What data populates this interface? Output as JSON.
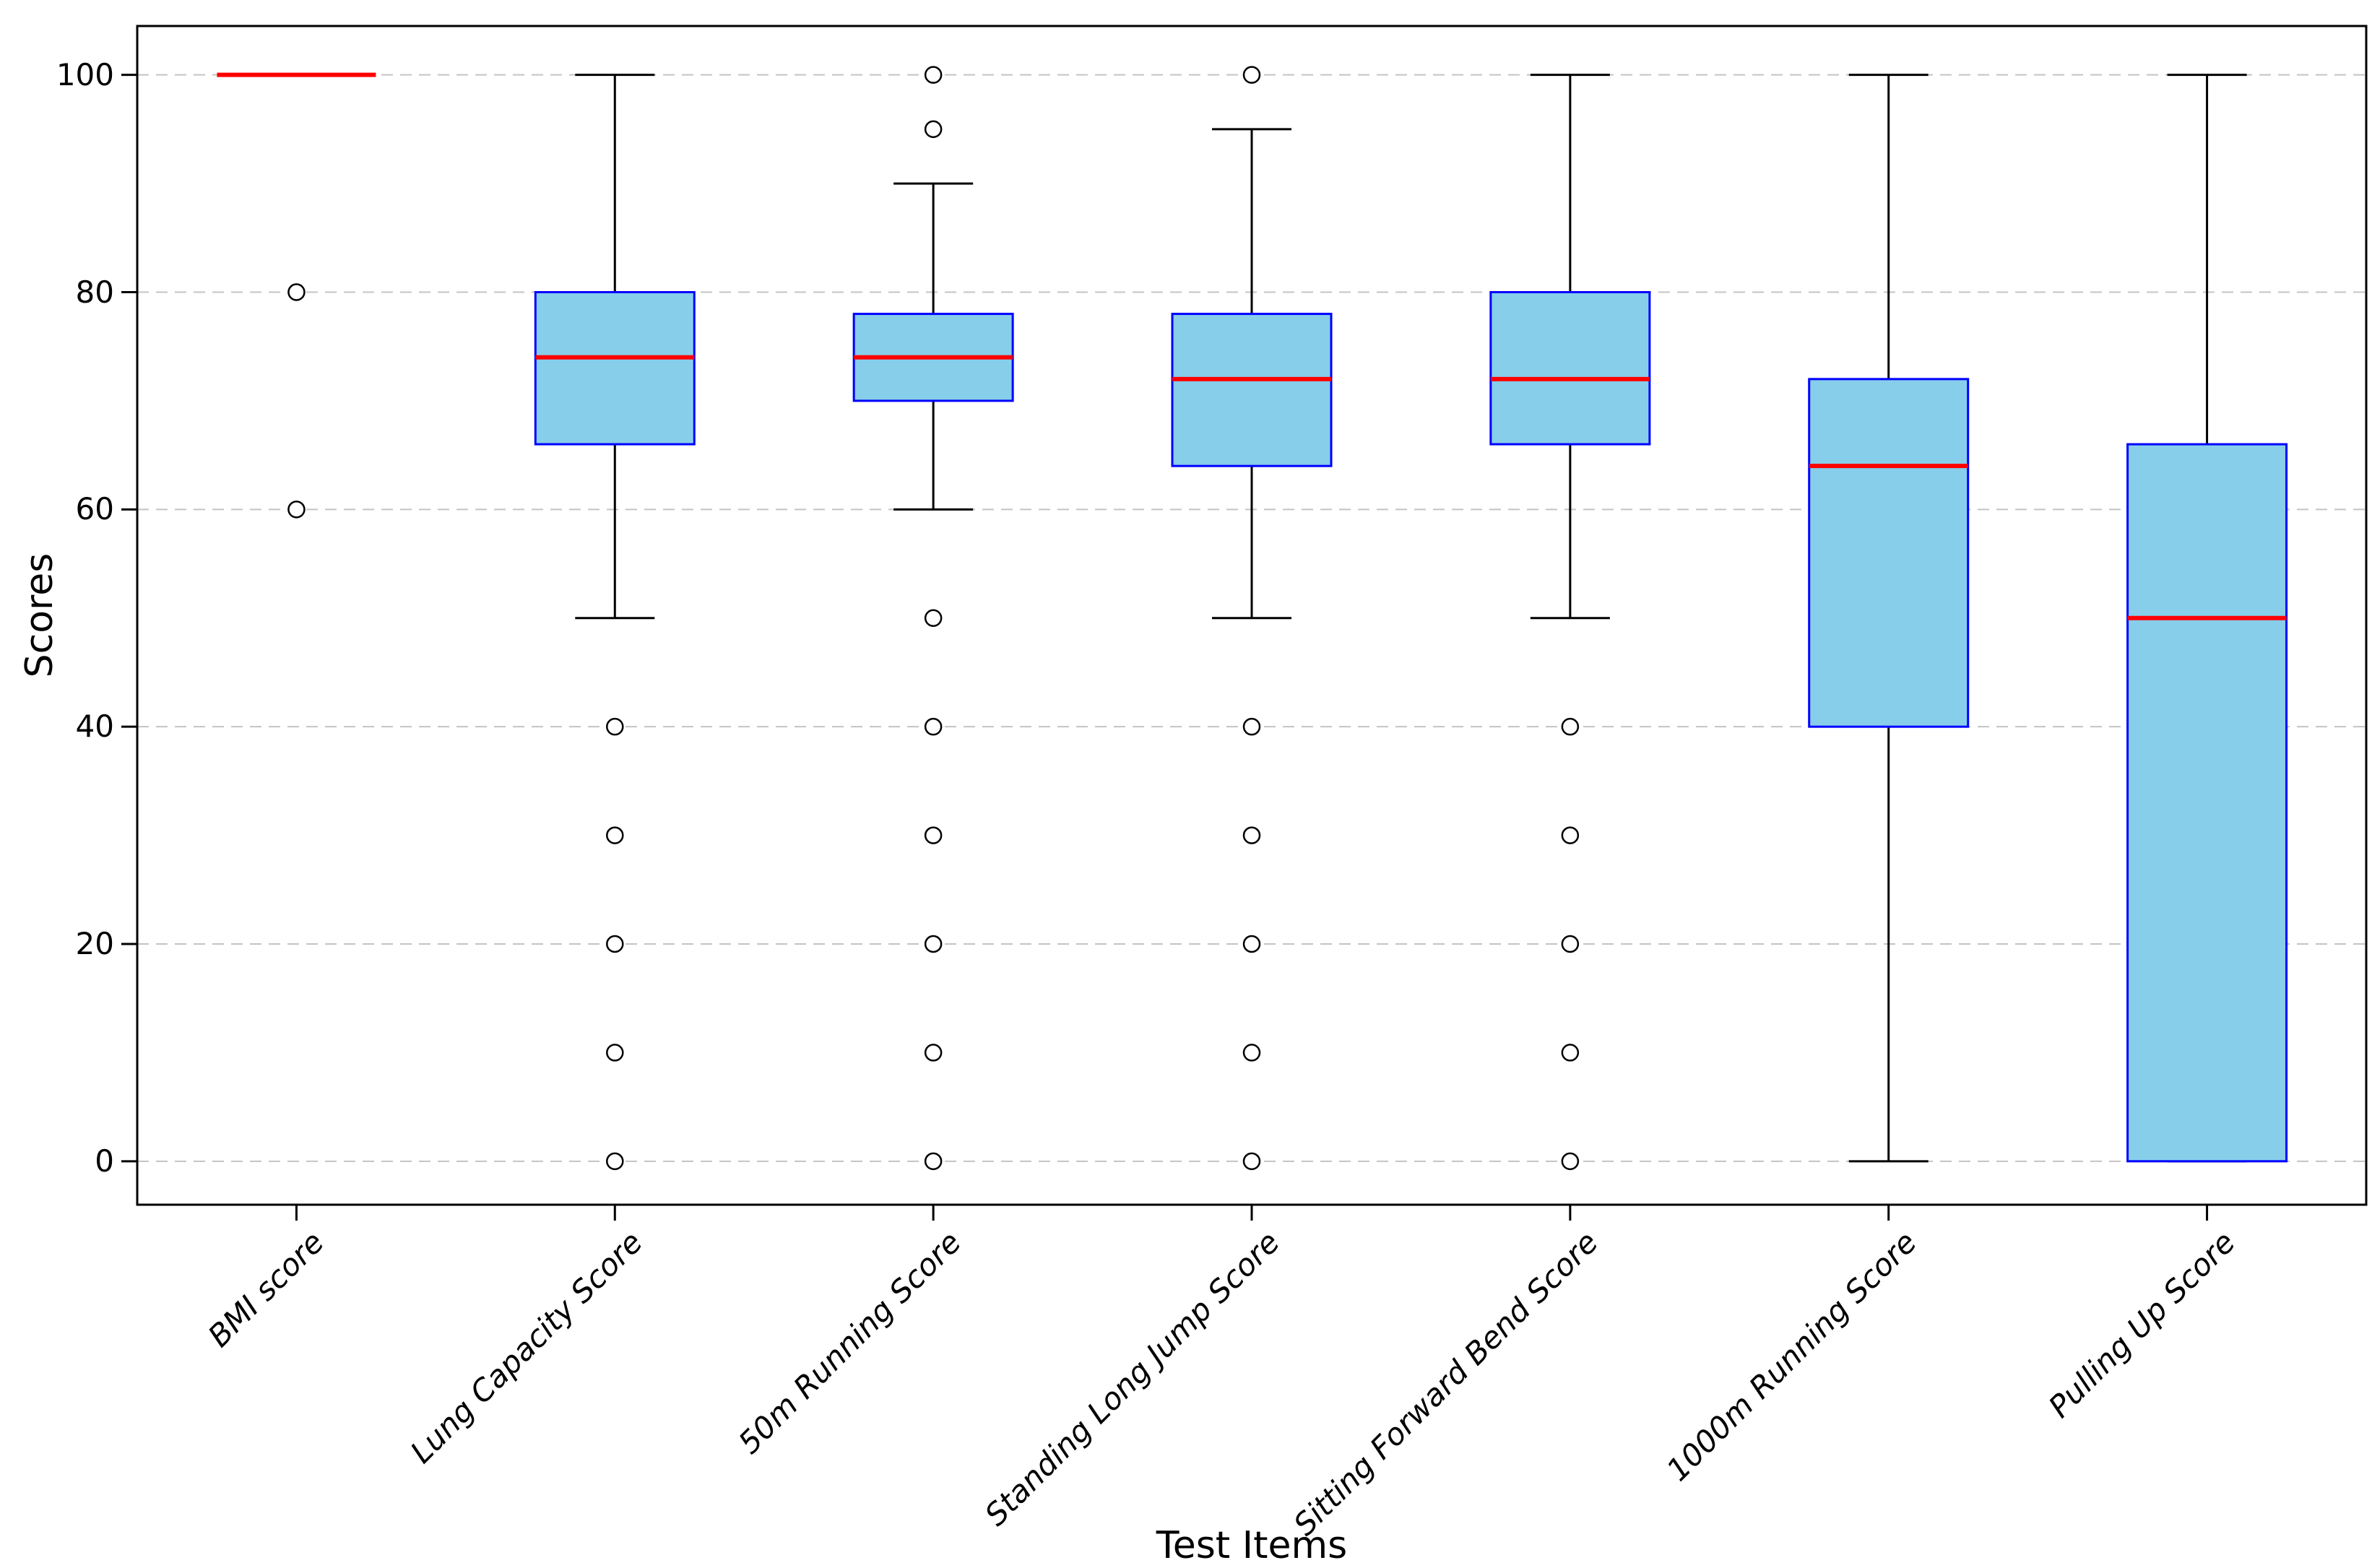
{
  "chart_data": {
    "type": "boxplot",
    "title": "",
    "xlabel": "Test Items",
    "ylabel": "Scores",
    "ylim": [
      -4,
      104.5
    ],
    "yticks": [
      0,
      20,
      40,
      60,
      80,
      100
    ],
    "grid": "horizontal-dashed",
    "legend": false,
    "categories": [
      "BMI score",
      "Lung Capacity Score",
      "50m Running Score",
      "Standing Long Jump Score",
      "Sitting Forward Bend Score",
      "1000m Running Score",
      "Pulling Up Score"
    ],
    "boxes": [
      {
        "label": "BMI score",
        "whisker_low": 100,
        "q1": 100,
        "median": 100,
        "q3": 100,
        "whisker_high": 100,
        "outliers": [
          80,
          60
        ]
      },
      {
        "label": "Lung Capacity Score",
        "whisker_low": 50,
        "q1": 66,
        "median": 74,
        "q3": 80,
        "whisker_high": 100,
        "outliers": [
          40,
          30,
          20,
          10,
          0
        ]
      },
      {
        "label": "50m Running Score",
        "whisker_low": 60,
        "q1": 70,
        "median": 74,
        "q3": 78,
        "whisker_high": 90,
        "outliers": [
          100,
          95,
          50,
          40,
          30,
          20,
          10,
          0
        ]
      },
      {
        "label": "Standing Long Jump Score",
        "whisker_low": 50,
        "q1": 64,
        "median": 72,
        "q3": 78,
        "whisker_high": 95,
        "outliers": [
          100,
          40,
          30,
          20,
          10,
          0
        ]
      },
      {
        "label": "Sitting Forward Bend Score",
        "whisker_low": 50,
        "q1": 66,
        "median": 72,
        "q3": 80,
        "whisker_high": 100,
        "outliers": [
          40,
          30,
          20,
          10,
          0
        ]
      },
      {
        "label": "1000m Running Score",
        "whisker_low": 0,
        "q1": 40,
        "median": 64,
        "q3": 72,
        "whisker_high": 100,
        "outliers": []
      },
      {
        "label": "Pulling Up Score",
        "whisker_low": 0,
        "q1": 0,
        "median": 50,
        "q3": 66,
        "whisker_high": 100,
        "outliers": []
      }
    ],
    "style": {
      "box_fill": "#87CEEB",
      "box_edge": "#0000FF",
      "median_color": "#FF0000",
      "whisker_color": "#000000",
      "outlier_edge": "#000000",
      "outlier_fill": "#FFFFFF",
      "grid_color": "#C4C4C4",
      "frame_color": "#000000",
      "background": "#FFFFFF"
    }
  }
}
